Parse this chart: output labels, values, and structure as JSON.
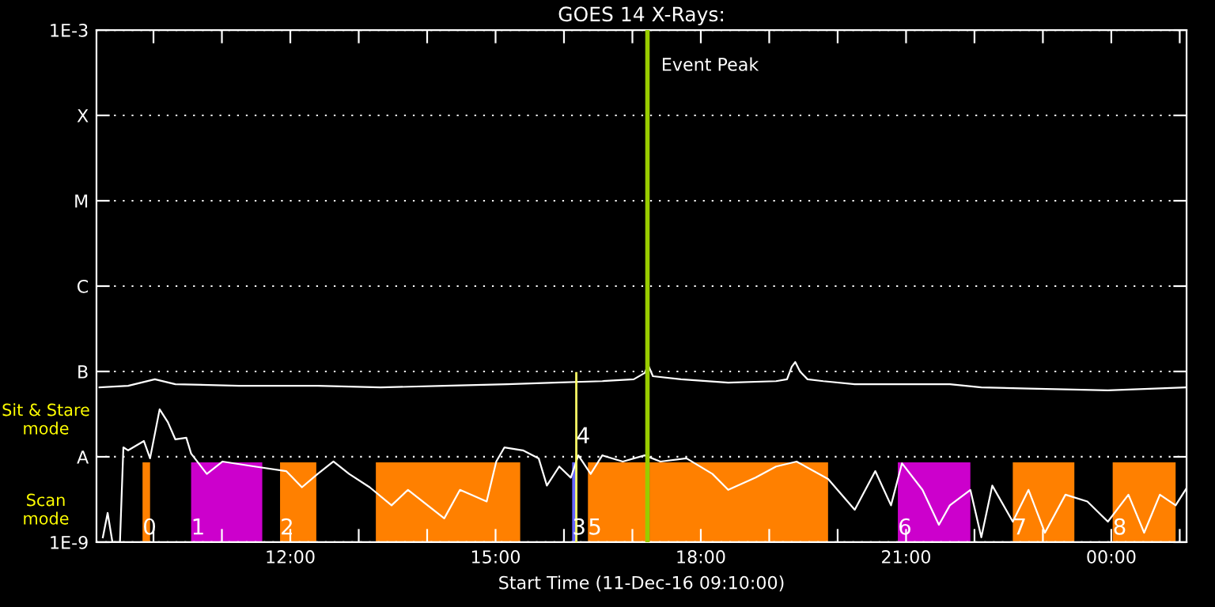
{
  "chart_data": {
    "type": "line",
    "title": "GOES 14 X-Rays:",
    "xlabel": "Start Time (11-Dec-16 09:10:00)",
    "log": "y",
    "grid": "y",
    "line_style": "solid",
    "marker": "none",
    "xlim": [
      9.1667,
      25.1
    ],
    "ylim": [
      1e-09,
      0.001
    ],
    "xticks": [
      {
        "value": 10,
        "label": null
      },
      {
        "value": 11,
        "label": null
      },
      {
        "value": 12,
        "label": "12:00"
      },
      {
        "value": 13,
        "label": null
      },
      {
        "value": 14,
        "label": null
      },
      {
        "value": 15,
        "label": "15:00"
      },
      {
        "value": 16,
        "label": null
      },
      {
        "value": 17,
        "label": null
      },
      {
        "value": 18,
        "label": "18:00"
      },
      {
        "value": 19,
        "label": null
      },
      {
        "value": 20,
        "label": null
      },
      {
        "value": 21,
        "label": "21:00"
      },
      {
        "value": 22,
        "label": null
      },
      {
        "value": 23,
        "label": null
      },
      {
        "value": 24,
        "label": "00:00"
      },
      {
        "value": 25,
        "label": null
      }
    ],
    "yticks": [
      {
        "value": 1e-09,
        "label": "1E-9"
      },
      {
        "value": 1e-08,
        "label": "A"
      },
      {
        "value": 1e-07,
        "label": "B"
      },
      {
        "value": 1e-06,
        "label": "C"
      },
      {
        "value": 1e-05,
        "label": "M"
      },
      {
        "value": 0.0001,
        "label": "X"
      },
      {
        "value": 0.001,
        "label": "1E-3"
      }
    ],
    "series": [
      {
        "color": "#ffffff",
        "x": [
          9.21,
          9.63,
          10.02,
          10.32,
          11.25,
          12.4,
          13.32,
          14.25,
          15.17,
          15.86,
          16.56,
          17.02,
          17.18,
          17.23,
          17.3,
          17.71,
          18.4,
          19.1,
          19.26,
          19.33,
          19.38,
          19.45,
          19.56,
          19.79,
          20.25,
          20.71,
          21.64,
          22.1,
          22.79,
          23.95,
          24.64,
          25.08
        ],
        "values": [
          6.5e-08,
          6.8e-08,
          8.1e-08,
          7.1e-08,
          6.8e-08,
          6.8e-08,
          6.5e-08,
          6.8e-08,
          7.1e-08,
          7.4e-08,
          7.7e-08,
          8.1e-08,
          9.6e-08,
          1.19e-07,
          8.8e-08,
          8.1e-08,
          7.4e-08,
          7.7e-08,
          8.1e-08,
          1.14e-07,
          1.29e-07,
          1e-07,
          8.1e-08,
          7.7e-08,
          7.1e-08,
          7.1e-08,
          7.1e-08,
          6.5e-08,
          6.3e-08,
          6e-08,
          6.3e-08,
          6.5e-08
        ]
      },
      {
        "color": "#ffffff",
        "x": [
          9.26,
          9.33,
          9.4,
          9.51,
          9.56,
          9.63,
          9.86,
          9.95,
          10.09,
          10.21,
          10.32,
          10.48,
          10.55,
          10.78,
          11.01,
          11.48,
          11.94,
          12.17,
          12.4,
          12.63,
          12.86,
          13.16,
          13.48,
          13.72,
          14.25,
          14.48,
          14.87,
          15.01,
          15.13,
          15.4,
          15.63,
          15.75,
          15.93,
          16.1,
          16.21,
          16.39,
          16.56,
          16.86,
          17.18,
          17.41,
          17.79,
          18.17,
          18.4,
          18.8,
          19.1,
          19.4,
          19.86,
          20.25,
          20.55,
          20.78,
          20.94,
          21.24,
          21.48,
          21.64,
          21.94,
          22.1,
          22.26,
          22.56,
          22.79,
          23.03,
          23.33,
          23.65,
          23.95,
          24.25,
          24.48,
          24.71,
          24.94,
          25.1
        ],
        "values": [
          1.14e-09,
          2.2e-09,
          1e-09,
          1e-09,
          1.29e-08,
          1.19e-08,
          1.53e-08,
          9.6e-09,
          3.6e-08,
          2.55e-08,
          1.6e-08,
          1.67e-08,
          1.09e-08,
          6.3e-09,
          8.8e-09,
          7.7e-09,
          6.8e-09,
          4.4e-09,
          6.3e-09,
          8.8e-09,
          6.3e-09,
          4.4e-09,
          2.7e-09,
          4.1e-09,
          1.9e-09,
          4.1e-09,
          3e-09,
          8.8e-09,
          1.29e-08,
          1.19e-08,
          9.6e-09,
          4.6e-09,
          7.7e-09,
          5.7e-09,
          1.04e-08,
          6.3e-09,
          1.04e-08,
          8.8e-09,
          1.04e-08,
          8.8e-09,
          9.6e-09,
          6.3e-09,
          4.1e-09,
          5.7e-09,
          7.7e-09,
          8.8e-09,
          5.5e-09,
          2.4e-09,
          6.8e-09,
          2.7e-09,
          8.4e-09,
          4.1e-09,
          1.6e-09,
          2.7e-09,
          4.1e-09,
          1.14e-09,
          4.6e-09,
          1.74e-09,
          4.1e-09,
          1.29e-09,
          3.6e-09,
          3e-09,
          1.74e-09,
          3.6e-09,
          1.29e-09,
          3.6e-09,
          2.7e-09,
          4.3e-09
        ]
      }
    ],
    "bands": [
      {
        "axis": "x",
        "from": 9.84,
        "to": 9.95,
        "label": "0",
        "color": "#ff8000"
      },
      {
        "axis": "x",
        "from": 10.55,
        "to": 11.59,
        "label": "1",
        "color": "#cc00cc"
      },
      {
        "axis": "x",
        "from": 11.85,
        "to": 12.38,
        "label": "2",
        "color": "#ff8000"
      },
      {
        "axis": "x",
        "from": 13.25,
        "to": 15.36,
        "label": null,
        "color": "#ff8000"
      },
      {
        "axis": "x",
        "from": 16.12,
        "to": 16.19,
        "label": "3",
        "color": "#6666ff"
      },
      {
        "axis": "x",
        "from": 16.35,
        "to": 17.2,
        "label": "5",
        "color": "#ff8000"
      },
      {
        "axis": "x",
        "from": 17.25,
        "to": 19.86,
        "label": null,
        "color": "#ff8000"
      },
      {
        "axis": "x",
        "from": 20.88,
        "to": 21.94,
        "label": "6",
        "color": "#cc00cc"
      },
      {
        "axis": "x",
        "from": 22.56,
        "to": 23.46,
        "label": "7",
        "color": "#ff8000"
      },
      {
        "axis": "x",
        "from": 24.02,
        "to": 24.94,
        "label": "8",
        "color": "#ff8000"
      }
    ],
    "ref_lines": [
      {
        "axis": "x",
        "value": 16.18,
        "color": "#ffff66"
      },
      {
        "axis": "x",
        "value": 17.22,
        "label": "Event Peak",
        "color": "#99cc00"
      }
    ],
    "annotations": [
      "Sit & Stare mode",
      "Scan mode",
      {
        "text": "4",
        "x": 16.18,
        "y": 1.7e-08
      }
    ]
  }
}
